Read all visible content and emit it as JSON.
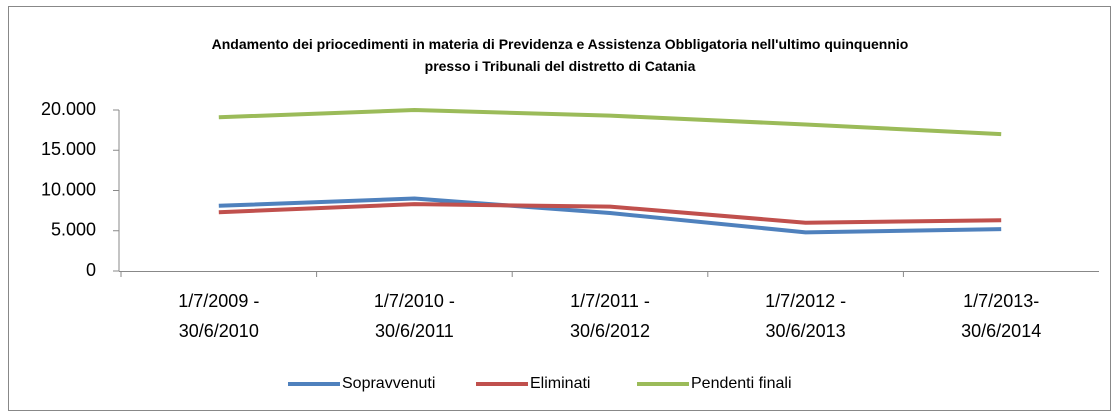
{
  "chart_data": {
    "type": "line",
    "title": "Andamento dei priocedimenti in materia di Previdenza e Assistenza Obbligatoria nell'ultimo quinquennio\npresso i Tribunali del distretto di Catania",
    "categories": [
      "1/7/2009 -\n30/6/2010",
      "1/7/2010 -\n30/6/2011",
      "1/7/2011 -\n30/6/2012",
      "1/7/2012 -\n30/6/2013",
      "1/7/2013-\n30/6/2014"
    ],
    "series": [
      {
        "name": "Sopravvenuti",
        "color": "#4f81bd",
        "values": [
          8100,
          9000,
          7200,
          4800,
          5200
        ]
      },
      {
        "name": "Eliminati",
        "color": "#c0504d",
        "values": [
          7300,
          8300,
          8000,
          6000,
          6300
        ]
      },
      {
        "name": "Pendenti finali",
        "color": "#9bbb59",
        "values": [
          19100,
          20000,
          19300,
          18200,
          17000
        ]
      }
    ],
    "ylim": [
      0,
      20000
    ],
    "yticks": [
      0,
      {
        "value": 5000,
        "label": "5.000"
      },
      {
        "value": 10000,
        "label": "10.000"
      },
      {
        "value": 15000,
        "label": "15.000"
      },
      {
        "value": 20000,
        "label": "20.000"
      }
    ],
    "grid": false,
    "legend": "bottom"
  }
}
